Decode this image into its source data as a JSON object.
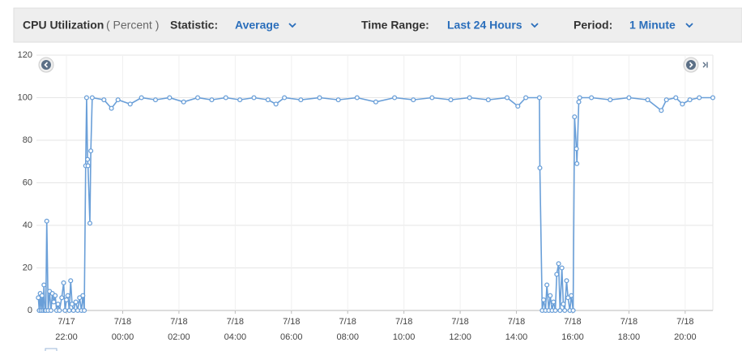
{
  "toolbar": {
    "title": "CPU Utilization",
    "unit": "( Percent )",
    "statistic_label": "Statistic:",
    "statistic": "Average",
    "range_label": "Time Range:",
    "range": "Last 24 Hours",
    "period_label": "Period:",
    "period": "1 Minute"
  },
  "chart_data": {
    "type": "line",
    "color": "#6a9fd8",
    "grid": true,
    "xlim": [
      "7/17 20:56",
      "7/18 20:59"
    ],
    "xticks": [
      "7/17 22:00",
      "7/18 00:00",
      "7/18 02:00",
      "7/18 04:00",
      "7/18 06:00",
      "7/18 08:00",
      "7/18 10:00",
      "7/18 12:00",
      "7/18 14:00",
      "7/18 16:00",
      "7/18 18:00",
      "7/18 20:00"
    ],
    "ylim": [
      0,
      120
    ],
    "yticks": [
      0,
      20,
      40,
      60,
      80,
      100,
      120
    ],
    "x": [
      "7/17 21:00",
      "7/17 21:02",
      "7/17 21:04",
      "7/17 21:06",
      "7/17 21:08",
      "7/17 21:10",
      "7/17 21:12",
      "7/17 21:14",
      "7/17 21:16",
      "7/17 21:18",
      "7/17 21:21",
      "7/17 21:24",
      "7/17 21:27",
      "7/17 21:30",
      "7/17 21:33",
      "7/17 21:36",
      "7/17 21:39",
      "7/17 21:42",
      "7/17 21:45",
      "7/17 21:50",
      "7/17 21:54",
      "7/17 21:57",
      "7/17 22:00",
      "7/17 22:03",
      "7/17 22:06",
      "7/17 22:09",
      "7/17 22:12",
      "7/17 22:15",
      "7/17 22:20",
      "7/17 22:24",
      "7/17 22:28",
      "7/17 22:32",
      "7/17 22:35",
      "7/17 22:38",
      "7/17 22:41",
      "7/17 22:43",
      "7/17 22:45",
      "7/17 22:46",
      "7/17 22:50",
      "7/17 22:52",
      "7/17 22:55",
      "7/17 23:20",
      "7/17 23:36",
      "7/17 23:50",
      "7/18 00:16",
      "7/18 00:40",
      "7/18 01:10",
      "7/18 01:40",
      "7/18 02:10",
      "7/18 02:40",
      "7/18 03:10",
      "7/18 03:40",
      "7/18 04:10",
      "7/18 04:40",
      "7/18 05:10",
      "7/18 05:27",
      "7/18 05:45",
      "7/18 06:20",
      "7/18 07:00",
      "7/18 07:40",
      "7/18 08:20",
      "7/18 09:00",
      "7/18 09:40",
      "7/18 10:20",
      "7/18 11:00",
      "7/18 11:40",
      "7/18 12:20",
      "7/18 13:00",
      "7/18 13:40",
      "7/18 14:03",
      "7/18 14:20",
      "7/18 14:49",
      "7/18 14:50",
      "7/18 14:55",
      "7/18 14:58",
      "7/18 15:02",
      "7/18 15:05",
      "7/18 15:09",
      "7/18 15:12",
      "7/18 15:16",
      "7/18 15:19",
      "7/18 15:23",
      "7/18 15:26",
      "7/18 15:30",
      "7/18 15:33",
      "7/18 15:37",
      "7/18 15:40",
      "7/18 15:43",
      "7/18 15:47",
      "7/18 15:50",
      "7/18 15:54",
      "7/18 15:57",
      "7/18 16:01",
      "7/18 16:04",
      "7/18 16:08",
      "7/18 16:09",
      "7/18 16:13",
      "7/18 16:15",
      "7/18 16:40",
      "7/18 17:20",
      "7/18 18:00",
      "7/18 18:40",
      "7/18 19:09",
      "7/18 19:20",
      "7/18 19:40",
      "7/18 19:54",
      "7/18 20:10",
      "7/18 20:30",
      "7/18 20:59"
    ],
    "values": [
      6,
      0,
      8,
      0,
      7,
      0,
      12,
      0,
      0,
      42,
      0,
      9,
      0,
      8,
      4,
      7,
      0,
      3,
      0,
      6,
      13,
      0,
      5,
      7,
      0,
      14,
      3,
      0,
      4,
      0,
      6,
      0,
      7,
      0,
      68,
      100,
      71,
      68,
      41,
      75,
      100,
      99,
      95,
      99,
      97,
      100,
      99,
      100,
      98,
      100,
      99,
      100,
      99,
      100,
      99,
      97,
      100,
      99,
      100,
      99,
      100,
      98,
      100,
      99,
      100,
      99,
      100,
      99,
      100,
      96,
      100,
      100,
      67,
      0,
      5,
      0,
      12,
      0,
      7,
      0,
      4,
      0,
      17,
      22,
      0,
      20,
      3,
      0,
      14,
      6,
      0,
      7,
      0,
      91,
      76,
      69,
      98,
      100,
      100,
      99,
      100,
      99,
      94,
      99,
      100,
      97,
      99,
      100,
      100
    ]
  }
}
